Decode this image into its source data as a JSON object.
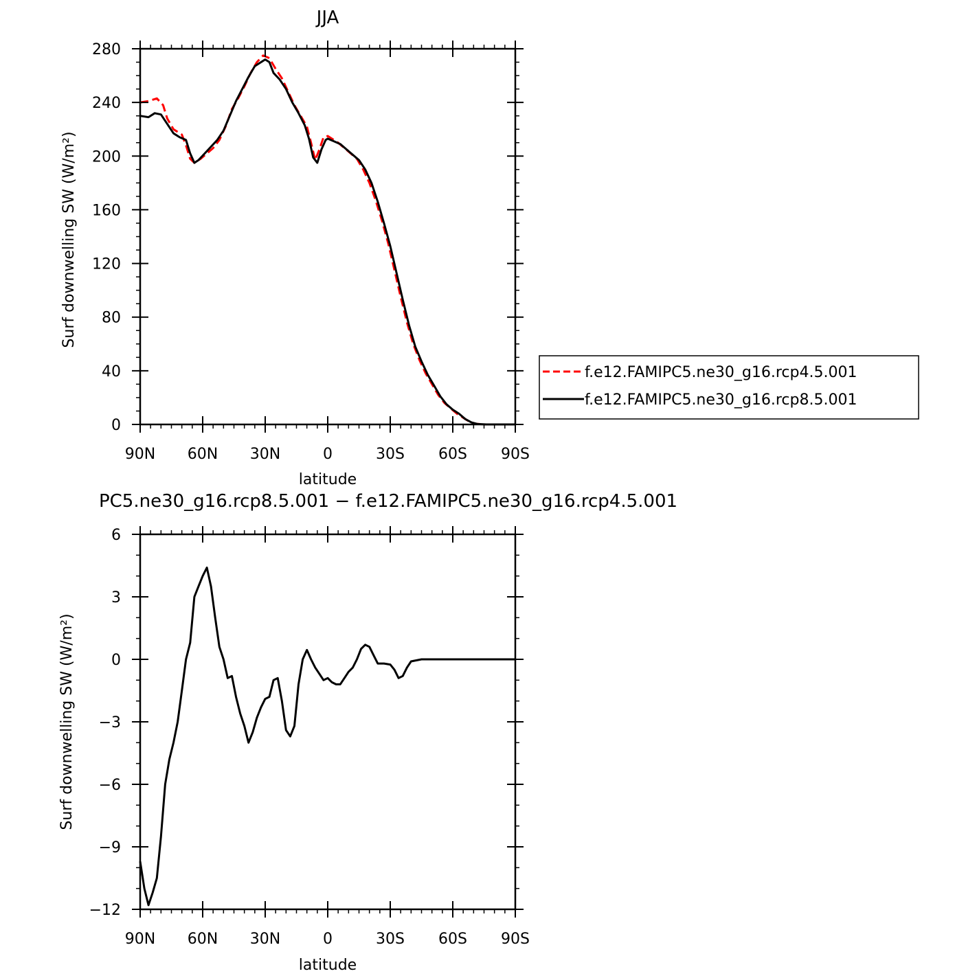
{
  "chart_data": [
    {
      "type": "line",
      "title": "JJA",
      "xlabel": "latitude",
      "ylabel": "Surf downwelling SW (W/m²)",
      "xlim": [
        90,
        -90
      ],
      "ylim": [
        0,
        280
      ],
      "x_ticks": [
        90,
        60,
        30,
        0,
        -30,
        -60,
        -90
      ],
      "x_tick_labels": [
        "90N",
        "60N",
        "30N",
        "0",
        "30S",
        "60S",
        "90S"
      ],
      "y_ticks": [
        0,
        40,
        80,
        120,
        160,
        200,
        240,
        280
      ],
      "y_tick_labels": [
        "0",
        "40",
        "80",
        "120",
        "160",
        "200",
        "240",
        "280"
      ],
      "legend_position": "right",
      "series": [
        {
          "name": "f.e12.FAMIPC5.ne30_g16.rcp4.5.001",
          "color": "#ff0000",
          "dash": "dashed",
          "points": [
            [
              90,
              240
            ],
            [
              86,
              241
            ],
            [
              82,
              243
            ],
            [
              79,
              238
            ],
            [
              77,
              228
            ],
            [
              74,
              220
            ],
            [
              70,
              216
            ],
            [
              68,
              208
            ],
            [
              66,
              198
            ],
            [
              64,
              195
            ],
            [
              61,
              198
            ],
            [
              58,
              202
            ],
            [
              55,
              206
            ],
            [
              52,
              212
            ],
            [
              49,
              222
            ],
            [
              46,
              235
            ],
            [
              43,
              243
            ],
            [
              40,
              252
            ],
            [
              37,
              262
            ],
            [
              34,
              270
            ],
            [
              31,
              275
            ],
            [
              28,
              273
            ],
            [
              25,
              265
            ],
            [
              22,
              258
            ],
            [
              19,
              248
            ],
            [
              16,
              238
            ],
            [
              13,
              230
            ],
            [
              10,
              222
            ],
            [
              8,
              210
            ],
            [
              6,
              197
            ],
            [
              4,
              205
            ],
            [
              2,
              214
            ],
            [
              0,
              215
            ],
            [
              -2,
              213
            ],
            [
              -5,
              210
            ],
            [
              -8,
              206
            ],
            [
              -11,
              202
            ],
            [
              -14,
              198
            ],
            [
              -17,
              190
            ],
            [
              -20,
              180
            ],
            [
              -23,
              167
            ],
            [
              -26,
              152
            ],
            [
              -29,
              135
            ],
            [
              -32,
              115
            ],
            [
              -35,
              95
            ],
            [
              -38,
              76
            ],
            [
              -41,
              60
            ],
            [
              -44,
              48
            ],
            [
              -47,
              38
            ],
            [
              -50,
              30
            ],
            [
              -53,
              22
            ],
            [
              -56,
              16
            ],
            [
              -59,
              12
            ],
            [
              -62,
              8
            ],
            [
              -65,
              5
            ],
            [
              -68,
              2
            ],
            [
              -71,
              0.5
            ],
            [
              -75,
              0
            ],
            [
              -80,
              0
            ],
            [
              -85,
              0
            ],
            [
              -90,
              0
            ]
          ]
        },
        {
          "name": "f.e12.FAMIPC5.ne30_g16.rcp8.5.001",
          "color": "#000000",
          "dash": "solid",
          "points": [
            [
              90,
              230
            ],
            [
              86,
              229
            ],
            [
              83,
              232
            ],
            [
              80,
              231
            ],
            [
              77,
              224
            ],
            [
              74,
              217
            ],
            [
              71,
              214
            ],
            [
              68,
              212
            ],
            [
              66,
              202
            ],
            [
              64,
              195
            ],
            [
              62,
              197
            ],
            [
              59,
              202
            ],
            [
              56,
              207
            ],
            [
              53,
              212
            ],
            [
              50,
              219
            ],
            [
              47,
              230
            ],
            [
              44,
              241
            ],
            [
              41,
              250
            ],
            [
              38,
              259
            ],
            [
              35,
              267
            ],
            [
              32,
              270
            ],
            [
              30,
              272
            ],
            [
              28,
              270
            ],
            [
              26,
              262
            ],
            [
              23,
              257
            ],
            [
              20,
              250
            ],
            [
              17,
              240
            ],
            [
              14,
              232
            ],
            [
              11,
              223
            ],
            [
              9,
              213
            ],
            [
              7,
              199
            ],
            [
              5,
              195
            ],
            [
              3,
              205
            ],
            [
              1,
              212
            ],
            [
              0,
              213
            ],
            [
              -3,
              211
            ],
            [
              -6,
              209
            ],
            [
              -9,
              205
            ],
            [
              -12,
              201
            ],
            [
              -15,
              197
            ],
            [
              -18,
              190
            ],
            [
              -21,
              180
            ],
            [
              -24,
              166
            ],
            [
              -27,
              150
            ],
            [
              -30,
              133
            ],
            [
              -33,
              113
            ],
            [
              -36,
              93
            ],
            [
              -39,
              74
            ],
            [
              -42,
              58
            ],
            [
              -45,
              47
            ],
            [
              -48,
              37
            ],
            [
              -51,
              29
            ],
            [
              -54,
              21
            ],
            [
              -57,
              15
            ],
            [
              -60,
              11
            ],
            [
              -63,
              8
            ],
            [
              -66,
              4
            ],
            [
              -69,
              1.5
            ],
            [
              -72,
              0.3
            ],
            [
              -76,
              0
            ],
            [
              -80,
              0
            ],
            [
              -85,
              0
            ],
            [
              -90,
              0
            ]
          ]
        }
      ]
    },
    {
      "type": "line",
      "title": "PC5.ne30_g16.rcp8.5.001 − f.e12.FAMIPC5.ne30_g16.rcp4.5.001",
      "xlabel": "latitude",
      "ylabel": "Surf downwelling SW (W/m²)",
      "xlim": [
        90,
        -90
      ],
      "ylim": [
        -12,
        6
      ],
      "x_ticks": [
        90,
        60,
        30,
        0,
        -30,
        -60,
        -90
      ],
      "x_tick_labels": [
        "90N",
        "60N",
        "30N",
        "0",
        "30S",
        "60S",
        "90S"
      ],
      "y_ticks": [
        -12,
        -9,
        -6,
        -3,
        0,
        3,
        6
      ],
      "y_tick_labels": [
        "−12",
        "−9",
        "−6",
        "−3",
        "0",
        "3",
        "6"
      ],
      "series": [
        {
          "color": "#000000",
          "dash": "solid",
          "points": [
            [
              90,
              -9.7
            ],
            [
              88,
              -11.0
            ],
            [
              86,
              -11.8
            ],
            [
              84,
              -11.2
            ],
            [
              82,
              -10.5
            ],
            [
              80,
              -8.5
            ],
            [
              78,
              -6.0
            ],
            [
              76,
              -4.8
            ],
            [
              74,
              -4.0
            ],
            [
              72,
              -3.0
            ],
            [
              70,
              -1.5
            ],
            [
              68,
              0.0
            ],
            [
              66,
              0.8
            ],
            [
              64,
              3.0
            ],
            [
              62,
              3.5
            ],
            [
              60,
              4.0
            ],
            [
              58,
              4.4
            ],
            [
              56,
              3.5
            ],
            [
              54,
              2.0
            ],
            [
              52,
              0.6
            ],
            [
              50,
              0.0
            ],
            [
              48,
              -0.9
            ],
            [
              46,
              -0.8
            ],
            [
              44,
              -1.8
            ],
            [
              42,
              -2.6
            ],
            [
              40,
              -3.2
            ],
            [
              38,
              -4.0
            ],
            [
              36,
              -3.5
            ],
            [
              34,
              -2.8
            ],
            [
              32,
              -2.3
            ],
            [
              30,
              -1.9
            ],
            [
              28,
              -1.8
            ],
            [
              26,
              -1.0
            ],
            [
              24,
              -0.9
            ],
            [
              22,
              -2.0
            ],
            [
              20,
              -3.4
            ],
            [
              18,
              -3.7
            ],
            [
              16,
              -3.2
            ],
            [
              14,
              -1.2
            ],
            [
              12,
              0.0
            ],
            [
              10,
              0.45
            ],
            [
              8,
              0.0
            ],
            [
              6,
              -0.4
            ],
            [
              4,
              -0.7
            ],
            [
              2,
              -1.0
            ],
            [
              0,
              -0.9
            ],
            [
              -2,
              -1.1
            ],
            [
              -4,
              -1.2
            ],
            [
              -6,
              -1.2
            ],
            [
              -8,
              -0.9
            ],
            [
              -10,
              -0.6
            ],
            [
              -12,
              -0.4
            ],
            [
              -14,
              0.0
            ],
            [
              -16,
              0.5
            ],
            [
              -18,
              0.7
            ],
            [
              -20,
              0.6
            ],
            [
              -22,
              0.2
            ],
            [
              -24,
              -0.2
            ],
            [
              -27,
              -0.2
            ],
            [
              -30,
              -0.25
            ],
            [
              -32,
              -0.5
            ],
            [
              -34,
              -0.9
            ],
            [
              -36,
              -0.8
            ],
            [
              -38,
              -0.4
            ],
            [
              -40,
              -0.1
            ],
            [
              -45,
              0.0
            ],
            [
              -55,
              0.0
            ],
            [
              -70,
              0.0
            ],
            [
              -90,
              0.0
            ]
          ]
        }
      ]
    }
  ]
}
